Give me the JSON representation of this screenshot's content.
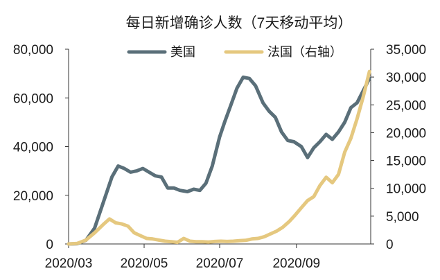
{
  "chart_data": {
    "type": "line",
    "title": "每日新增确诊人数（7天移动平均）",
    "x_tick_labels": [
      "2020/03",
      "2020/05",
      "2020/07",
      "2020/09"
    ],
    "x_ticks": [
      "2020-03-01",
      "2020-05-01",
      "2020-07-01",
      "2020-09-01"
    ],
    "x_range": [
      "2020-03-01",
      "2020-10-31"
    ],
    "left_axis": {
      "ylim": [
        0,
        80000
      ],
      "tick_labels": [
        "0",
        "20,000",
        "40,000",
        "60,000",
        "80,000"
      ],
      "ticks": [
        0,
        20000,
        40000,
        60000,
        80000
      ]
    },
    "right_axis": {
      "ylim": [
        0,
        35000
      ],
      "tick_labels": [
        "0",
        "5,000",
        "10,000",
        "15,000",
        "20,000",
        "25,000",
        "30,000",
        "35,000"
      ],
      "ticks": [
        0,
        5000,
        10000,
        15000,
        20000,
        25000,
        30000,
        35000
      ]
    },
    "grid": false,
    "legend_position": "top",
    "series": [
      {
        "name": "美国",
        "axis": "left",
        "color": "#5a6f79",
        "points": [
          [
            "2020-03-01",
            0
          ],
          [
            "2020-03-08",
            100
          ],
          [
            "2020-03-15",
            1500
          ],
          [
            "2020-03-22",
            6500
          ],
          [
            "2020-03-29",
            17000
          ],
          [
            "2020-04-05",
            27500
          ],
          [
            "2020-04-10",
            32000
          ],
          [
            "2020-04-15",
            31000
          ],
          [
            "2020-04-20",
            29500
          ],
          [
            "2020-04-25",
            30000
          ],
          [
            "2020-04-30",
            31000
          ],
          [
            "2020-05-05",
            29500
          ],
          [
            "2020-05-10",
            28000
          ],
          [
            "2020-05-15",
            27500
          ],
          [
            "2020-05-20",
            23000
          ],
          [
            "2020-05-25",
            23000
          ],
          [
            "2020-05-30",
            22000
          ],
          [
            "2020-06-05",
            21500
          ],
          [
            "2020-06-10",
            22500
          ],
          [
            "2020-06-15",
            22000
          ],
          [
            "2020-06-20",
            25000
          ],
          [
            "2020-06-25",
            32000
          ],
          [
            "2020-07-01",
            44000
          ],
          [
            "2020-07-05",
            50000
          ],
          [
            "2020-07-10",
            57000
          ],
          [
            "2020-07-15",
            64000
          ],
          [
            "2020-07-20",
            68500
          ],
          [
            "2020-07-25",
            68000
          ],
          [
            "2020-07-30",
            65000
          ],
          [
            "2020-08-05",
            58000
          ],
          [
            "2020-08-10",
            54500
          ],
          [
            "2020-08-15",
            52000
          ],
          [
            "2020-08-20",
            46000
          ],
          [
            "2020-08-25",
            42500
          ],
          [
            "2020-08-30",
            42000
          ],
          [
            "2020-09-05",
            40000
          ],
          [
            "2020-09-10",
            35500
          ],
          [
            "2020-09-15",
            39500
          ],
          [
            "2020-09-20",
            42000
          ],
          [
            "2020-09-25",
            45000
          ],
          [
            "2020-09-30",
            43000
          ],
          [
            "2020-10-05",
            46000
          ],
          [
            "2020-10-10",
            50000
          ],
          [
            "2020-10-15",
            56000
          ],
          [
            "2020-10-20",
            58000
          ],
          [
            "2020-10-25",
            63000
          ],
          [
            "2020-10-30",
            68000
          ]
        ]
      },
      {
        "name": "法国（右轴）",
        "axis": "right",
        "color": "#e5c87f",
        "points": [
          [
            "2020-03-01",
            0
          ],
          [
            "2020-03-08",
            100
          ],
          [
            "2020-03-15",
            700
          ],
          [
            "2020-03-22",
            2000
          ],
          [
            "2020-03-29",
            3500
          ],
          [
            "2020-04-03",
            4500
          ],
          [
            "2020-04-08",
            3800
          ],
          [
            "2020-04-13",
            3600
          ],
          [
            "2020-04-18",
            3200
          ],
          [
            "2020-04-23",
            2000
          ],
          [
            "2020-04-28",
            1500
          ],
          [
            "2020-05-03",
            1000
          ],
          [
            "2020-05-08",
            900
          ],
          [
            "2020-05-13",
            700
          ],
          [
            "2020-05-18",
            500
          ],
          [
            "2020-05-23",
            400
          ],
          [
            "2020-05-28",
            300
          ],
          [
            "2020-06-02",
            1000
          ],
          [
            "2020-06-07",
            500
          ],
          [
            "2020-06-12",
            400
          ],
          [
            "2020-06-17",
            400
          ],
          [
            "2020-06-22",
            350
          ],
          [
            "2020-06-27",
            450
          ],
          [
            "2020-07-02",
            500
          ],
          [
            "2020-07-07",
            450
          ],
          [
            "2020-07-12",
            500
          ],
          [
            "2020-07-17",
            600
          ],
          [
            "2020-07-22",
            650
          ],
          [
            "2020-07-27",
            900
          ],
          [
            "2020-08-01",
            1000
          ],
          [
            "2020-08-06",
            1300
          ],
          [
            "2020-08-11",
            1800
          ],
          [
            "2020-08-16",
            2300
          ],
          [
            "2020-08-21",
            3000
          ],
          [
            "2020-08-26",
            4000
          ],
          [
            "2020-08-31",
            5200
          ],
          [
            "2020-09-05",
            6500
          ],
          [
            "2020-09-10",
            7800
          ],
          [
            "2020-09-15",
            8500
          ],
          [
            "2020-09-20",
            10500
          ],
          [
            "2020-09-25",
            12000
          ],
          [
            "2020-09-30",
            11000
          ],
          [
            "2020-10-05",
            12500
          ],
          [
            "2020-10-10",
            16500
          ],
          [
            "2020-10-15",
            19000
          ],
          [
            "2020-10-20",
            22500
          ],
          [
            "2020-10-25",
            26500
          ],
          [
            "2020-10-30",
            31000
          ]
        ]
      }
    ]
  }
}
